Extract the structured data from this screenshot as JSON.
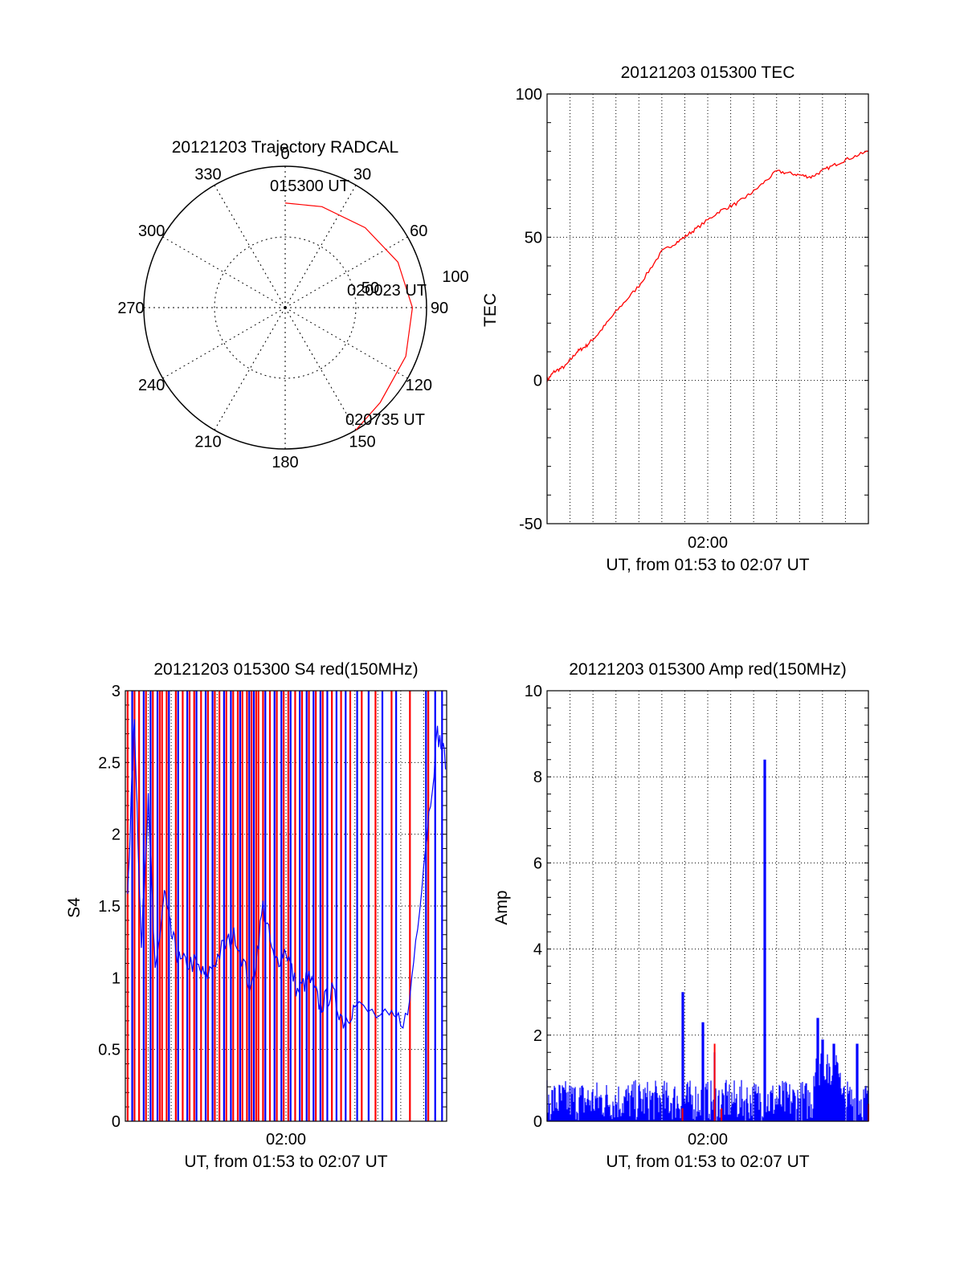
{
  "colors": {
    "series_a": "#ff0000",
    "series_b": "#0000ff",
    "axis": "#000000",
    "grid": "#000000"
  },
  "chart_data": [
    {
      "id": "trajectory",
      "type": "scatter",
      "projection": "polar",
      "title": "20121203 Trajectory RADCAL",
      "angle_labels": [
        "0",
        "30",
        "60",
        "90",
        "120",
        "150",
        "180",
        "210",
        "240",
        "270",
        "300",
        "330"
      ],
      "radius_labels": [
        "50",
        "100"
      ],
      "rlim": [
        0,
        100
      ],
      "grid": true,
      "series": [
        {
          "color": "#ff0000",
          "points": [
            {
              "az": 0,
              "zen": 74
            },
            {
              "az": 20,
              "zen": 76
            },
            {
              "az": 45,
              "zen": 80
            },
            {
              "az": 68,
              "zen": 86
            },
            {
              "az": 90,
              "zen": 90
            },
            {
              "az": 112,
              "zen": 92
            },
            {
              "az": 135,
              "zen": 95
            },
            {
              "az": 150,
              "zen": 100
            }
          ]
        }
      ],
      "annotations": [
        "015300 UT",
        "020023 UT",
        "020735 UT"
      ]
    },
    {
      "id": "tec",
      "type": "line",
      "title": "20121203 015300 TEC",
      "ylabel": "TEC",
      "xlabel": "UT, from 01:53 to 02:07 UT",
      "x_tick_label": "02:00",
      "ylim": [
        -50,
        100
      ],
      "y_ticks": [
        "-50",
        "0",
        "50",
        "100"
      ],
      "grid": true,
      "series": [
        {
          "color": "#ff0000",
          "points": [
            [
              0,
              0
            ],
            [
              0.3,
              3
            ],
            [
              0.8,
              5
            ],
            [
              1.3,
              10
            ],
            [
              1.7,
              12
            ],
            [
              2.2,
              16
            ],
            [
              3,
              24
            ],
            [
              4,
              33
            ],
            [
              5,
              45
            ],
            [
              5.8,
              49
            ],
            [
              6.5,
              53
            ],
            [
              7.5,
              59
            ],
            [
              8.3,
              62
            ],
            [
              9,
              66
            ],
            [
              10,
              73
            ],
            [
              10.8,
              72
            ],
            [
              11.5,
              71
            ],
            [
              12.2,
              74
            ],
            [
              13,
              77
            ],
            [
              14,
              80
            ]
          ]
        }
      ]
    },
    {
      "id": "s4",
      "type": "line",
      "title": "20121203 015300 S4 red(150MHz)",
      "ylabel": "S4",
      "xlabel": "UT, from 01:53 to 02:07 UT",
      "x_tick_label": "02:00",
      "ylim": [
        0,
        3
      ],
      "y_ticks": [
        "0",
        "0.5",
        "1",
        "1.5",
        "2",
        "2.5",
        "3"
      ],
      "grid": true,
      "series": [
        {
          "color": "#ff0000",
          "spikes_x": [
            0.1,
            0.4,
            0.6,
            0.9,
            1.2,
            1.5,
            1.6,
            1.8,
            2.2,
            2.5,
            2.8,
            3.0,
            3.3,
            3.6,
            3.9,
            4.1,
            4.4,
            4.7,
            4.9,
            5.1,
            5.3,
            5.5,
            5.7,
            5.8,
            6.0,
            6.3,
            6.6,
            6.9,
            7.1,
            7.4,
            7.7,
            8.0,
            8.3,
            8.6,
            9.0,
            9.4,
            9.8,
            10.3,
            10.9,
            11.6,
            12.4,
            13.2
          ]
        },
        {
          "color": "#0000ff",
          "points": [
            [
              0.1,
              1.6
            ],
            [
              0.4,
              2.8
            ],
            [
              0.7,
              1.2
            ],
            [
              1.0,
              2.3
            ],
            [
              1.3,
              1.0
            ],
            [
              1.7,
              1.6
            ],
            [
              2.0,
              1.3
            ],
            [
              2.4,
              1.1
            ],
            [
              3.0,
              1.1
            ],
            [
              3.5,
              1.0
            ],
            [
              4.2,
              1.2
            ],
            [
              4.8,
              1.3
            ],
            [
              5.5,
              0.9
            ],
            [
              6.0,
              1.5
            ],
            [
              6.5,
              1.1
            ],
            [
              7.0,
              1.2
            ],
            [
              7.5,
              0.9
            ],
            [
              8.0,
              1.0
            ],
            [
              8.5,
              0.8
            ],
            [
              9.0,
              0.9
            ],
            [
              9.5,
              0.7
            ],
            [
              10.0,
              0.8
            ],
            [
              11.5,
              0.7
            ],
            [
              12.3,
              0.72
            ],
            [
              13.0,
              1.8
            ],
            [
              13.6,
              2.7
            ],
            [
              14,
              2.5
            ]
          ],
          "spikes_x": [
            0.3,
            0.8,
            1.1,
            1.4,
            1.9,
            2.3,
            2.7,
            3.1,
            3.5,
            3.8,
            4.3,
            4.6,
            5.0,
            5.4,
            5.6,
            6.1,
            6.5,
            6.8,
            7.2,
            7.6,
            7.9,
            8.2,
            8.5,
            8.8,
            9.2,
            9.6,
            10.1,
            10.6,
            11.2,
            11.8,
            13.1,
            13.5,
            13.8
          ]
        }
      ]
    },
    {
      "id": "amp",
      "type": "line",
      "title": "20121203 015300 Amp red(150MHz)",
      "ylabel": "Amp",
      "xlabel": "UT, from 01:53 to 02:07 UT",
      "x_tick_label": "02:00",
      "ylim": [
        0,
        10
      ],
      "y_ticks": [
        "0",
        "2",
        "4",
        "6",
        "8",
        "10"
      ],
      "grid": true,
      "series": [
        {
          "color": "#0000ff",
          "base_level": 0.6,
          "peaks": [
            [
              5.9,
              3.0
            ],
            [
              6.8,
              2.3
            ],
            [
              7.3,
              1.6
            ],
            [
              9.5,
              8.4
            ],
            [
              11.8,
              2.4
            ],
            [
              12.0,
              1.9
            ],
            [
              12.5,
              1.8
            ],
            [
              13.5,
              1.8
            ]
          ],
          "block": [
            [
              11.6,
              12.8,
              1.6
            ]
          ]
        },
        {
          "color": "#ff0000",
          "peaks": [
            [
              5.9,
              0.3
            ],
            [
              7.3,
              1.8
            ],
            [
              7.6,
              0.3
            ],
            [
              14,
              0.4
            ]
          ]
        }
      ]
    }
  ]
}
